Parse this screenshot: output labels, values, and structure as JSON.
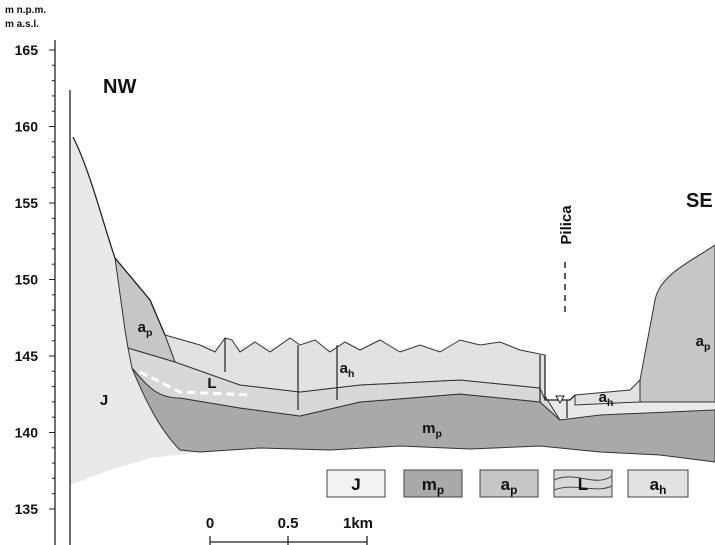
{
  "axis": {
    "units": [
      "m n.p.m.",
      "m a.s.l."
    ],
    "ticks": [
      "165",
      "160",
      "155",
      "150",
      "145",
      "140",
      "135"
    ]
  },
  "directions": {
    "left": "NW",
    "right": "SE"
  },
  "river": "Pilica",
  "section_labels": [
    {
      "main": "a",
      "sub": "p"
    },
    {
      "main": "J"
    },
    {
      "main": "L"
    },
    {
      "main": "a",
      "sub": "h"
    },
    {
      "main": "m",
      "sub": "p"
    },
    {
      "main": "a",
      "sub": "h"
    },
    {
      "main": "a",
      "sub": "p"
    }
  ],
  "legend": [
    {
      "main": "J"
    },
    {
      "main": "m",
      "sub": "p"
    },
    {
      "main": "a",
      "sub": "p"
    },
    {
      "main": "L"
    },
    {
      "main": "a",
      "sub": "h"
    }
  ],
  "scale": [
    "0",
    "0.5",
    "1km"
  ]
}
